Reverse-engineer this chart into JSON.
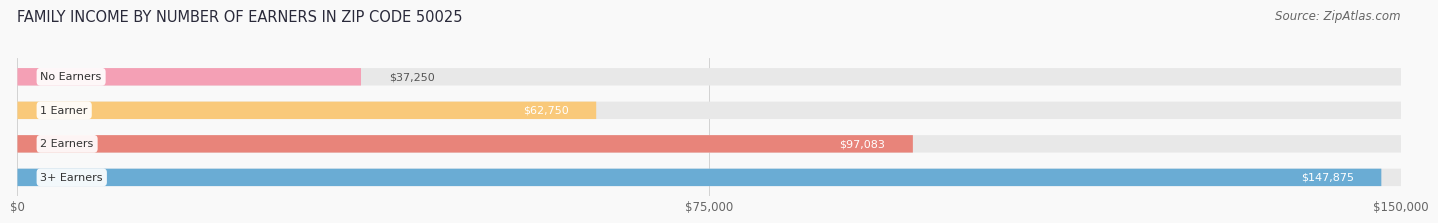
{
  "title": "FAMILY INCOME BY NUMBER OF EARNERS IN ZIP CODE 50025",
  "source": "Source: ZipAtlas.com",
  "categories": [
    "No Earners",
    "1 Earner",
    "2 Earners",
    "3+ Earners"
  ],
  "values": [
    37250,
    62750,
    97083,
    147875
  ],
  "bar_colors": [
    "#f4a0b5",
    "#f9c97a",
    "#e8847a",
    "#6aacd4"
  ],
  "track_color": "#e8e8e8",
  "background_color": "#f9f9f9",
  "xlim": [
    0,
    150000
  ],
  "xticks": [
    0,
    75000,
    150000
  ],
  "xtick_labels": [
    "$0",
    "$75,000",
    "$150,000"
  ],
  "title_fontsize": 10.5,
  "source_fontsize": 8.5,
  "bar_label_fontsize": 8,
  "category_fontsize": 8,
  "value_label_threshold": 60000
}
